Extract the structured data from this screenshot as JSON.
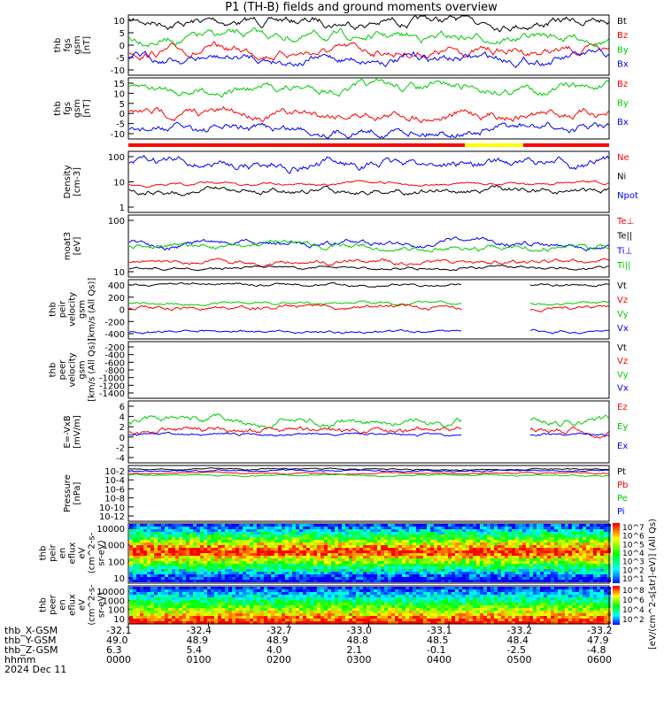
{
  "title": "P1 (TH-B) fields and ground moments overview",
  "date": "2024 Dec 11",
  "colors": {
    "black": "#000000",
    "red": "#ff0000",
    "green": "#00cc00",
    "blue": "#0000ff",
    "yellow": "#ffff00"
  },
  "chart_data": [
    {
      "type": "line",
      "id": "fgs1",
      "ylabel": [
        "thb",
        "fgs",
        "gsm",
        "[nT]"
      ],
      "yticks": [
        "10",
        "5",
        "0",
        "-5",
        "-10"
      ],
      "ylim": [
        -13,
        14
      ],
      "legend": [
        {
          "name": "Bt",
          "color": "black"
        },
        {
          "name": "Bz",
          "color": "red"
        },
        {
          "name": "By",
          "color": "green"
        },
        {
          "name": "Bx",
          "color": "blue"
        }
      ],
      "series": [
        {
          "name": "Bt",
          "base": 11,
          "noise": 2
        },
        {
          "name": "Bz",
          "base": -2,
          "noise": 3
        },
        {
          "name": "By",
          "base": 5,
          "noise": 2
        },
        {
          "name": "Bx",
          "base": -6,
          "noise": 2
        }
      ]
    },
    {
      "type": "line",
      "id": "fgs2",
      "ylabel": [
        "thb",
        "fgs",
        "gsm",
        "[nT]"
      ],
      "yticks": [
        "15",
        "10",
        "5",
        "0",
        "-5",
        "-10"
      ],
      "ylim": [
        -14,
        17
      ],
      "legend": [
        {
          "name": "Bz",
          "color": "red"
        },
        {
          "name": "By",
          "color": "green"
        },
        {
          "name": "Bx",
          "color": "blue"
        }
      ],
      "series": [
        {
          "name": "Bz",
          "base": -1,
          "noise": 3
        },
        {
          "name": "By",
          "base": 9,
          "noise": 2
        },
        {
          "name": "Bx",
          "base": -7,
          "noise": 2
        }
      ]
    },
    {
      "type": "line",
      "id": "density",
      "ylabel": [
        "Density",
        "[cm-3]"
      ],
      "yticks": [
        "100",
        "10",
        "1"
      ],
      "scale": "log",
      "legend": [
        {
          "name": "Ne",
          "color": "red"
        },
        {
          "name": "Ni",
          "color": "black"
        },
        {
          "name": "Npot",
          "color": "blue"
        }
      ]
    },
    {
      "type": "line",
      "id": "temp",
      "ylabel": [
        "moat3",
        "[eV]"
      ],
      "yticks": [
        "100",
        "10"
      ],
      "scale": "log",
      "legend": [
        {
          "name": "Te⊥",
          "color": "red"
        },
        {
          "name": "Te||",
          "color": "black"
        },
        {
          "name": "Ti⊥",
          "color": "blue"
        },
        {
          "name": "Ti||",
          "color": "green"
        }
      ]
    },
    {
      "type": "line",
      "id": "peirvel",
      "ylabel": [
        "thb",
        "peir",
        "velocity",
        "gsm",
        "[km/s (All Qs)]"
      ],
      "yticks": [
        "400",
        "200",
        "0",
        "-200",
        "-400"
      ],
      "ylim": [
        -480,
        380
      ],
      "legend": [
        {
          "name": "Vt",
          "color": "black"
        },
        {
          "name": "Vz",
          "color": "red"
        },
        {
          "name": "Vy",
          "color": "green"
        },
        {
          "name": "Vx",
          "color": "blue"
        }
      ]
    },
    {
      "type": "line",
      "id": "peervel",
      "ylabel": [
        "thb",
        "peer",
        "velocity",
        "gsm",
        "[km/s (All Qs)]"
      ],
      "yticks": [
        "-200",
        "-400",
        "-600",
        "-800",
        "-1000",
        "-1200",
        "-1400"
      ],
      "legend": [
        {
          "name": "Vt",
          "color": "black"
        },
        {
          "name": "Vz",
          "color": "red"
        },
        {
          "name": "Vy",
          "color": "green"
        },
        {
          "name": "Vx",
          "color": "blue"
        }
      ]
    },
    {
      "type": "line",
      "id": "efield",
      "ylabel": [
        "E=-VxB",
        "[mV/m]"
      ],
      "yticks": [
        "6",
        "4",
        "2",
        "0",
        "-2",
        "-4"
      ],
      "ylim": [
        -4.5,
        6.5
      ],
      "legend": [
        {
          "name": "Ez",
          "color": "red"
        },
        {
          "name": "Ey",
          "color": "green"
        },
        {
          "name": "Ex",
          "color": "blue"
        }
      ]
    },
    {
      "type": "line",
      "id": "pressure",
      "ylabel": [
        "Pressure",
        "[nPa]"
      ],
      "yticks": [
        "10-2",
        "10-4",
        "10-6",
        "10-8",
        "10-10",
        "10-12"
      ],
      "scale": "log",
      "legend": [
        {
          "name": "Pt",
          "color": "black"
        },
        {
          "name": "Pb",
          "color": "red"
        },
        {
          "name": "Pe",
          "color": "green"
        },
        {
          "name": "Pi",
          "color": "blue"
        }
      ]
    },
    {
      "type": "heatmap",
      "id": "peir",
      "ylabel": [
        "thb",
        "peir",
        "en",
        "eflux",
        "eV",
        "(cm^2-s-",
        "sr-eV)"
      ],
      "yticks": [
        "10000",
        "1000",
        "100",
        "10"
      ],
      "colorbar": [
        "10^7",
        "10^6",
        "10^5",
        "10^4",
        "10^3",
        "10^2",
        "10^1"
      ]
    },
    {
      "type": "heatmap",
      "id": "peer",
      "ylabel": [
        "thb",
        "peer",
        "en",
        "eflux",
        "eV",
        "(cm^2-s-",
        "sr-eV)"
      ],
      "yticks": [
        "10000",
        "1000",
        "100",
        "10"
      ],
      "colorbar": [
        "10^8",
        "10^6",
        "10^4",
        "10^2"
      ]
    }
  ],
  "colorbar_label": "[eV/(cm^2-s[str]-eV)] (All Qs)",
  "x_axis": {
    "row_labels": [
      "thb_X-GSM",
      "thb_Y-GSM",
      "thb_Z-GSM",
      "hhmm"
    ],
    "columns": [
      [
        "-32.1",
        "49.0",
        "6.3",
        "0000"
      ],
      [
        "-32.4",
        "48.9",
        "5.4",
        "0100"
      ],
      [
        "-32.7",
        "48.9",
        "4.0",
        "0200"
      ],
      [
        "-33.0",
        "48.8",
        "2.1",
        "0300"
      ],
      [
        "-33.1",
        "48.5",
        "-0.1",
        "0400"
      ],
      [
        "-33.2",
        "48.4",
        "-2.5",
        "0500"
      ],
      [
        "-33.2",
        "47.9",
        "-4.8",
        "0600"
      ]
    ]
  }
}
